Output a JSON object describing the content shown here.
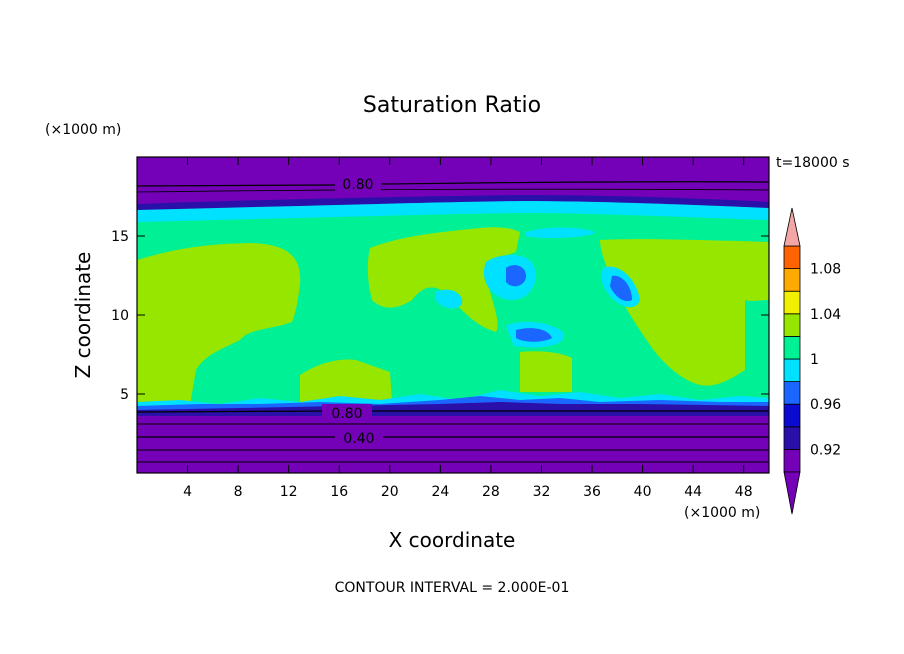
{
  "chart_data": {
    "type": "heatmap",
    "title": "Saturation Ratio",
    "xlabel": "X coordinate",
    "ylabel": "Z coordinate",
    "x_unit": "(×1000 m)",
    "y_unit": "(×1000 m)",
    "time_label": "t=18000 s",
    "footer": "CONTOUR INTERVAL = 2.000E-01",
    "xlim": [
      0,
      50
    ],
    "ylim": [
      0,
      20
    ],
    "x_ticks": [
      4,
      8,
      12,
      16,
      20,
      24,
      28,
      32,
      36,
      40,
      44,
      48
    ],
    "y_ticks": [
      5,
      10,
      15
    ],
    "contour_labels": [
      "0.80",
      "0.80",
      "0.40"
    ],
    "colorbar": {
      "tick_labels": [
        "0.92",
        "0.96",
        "1",
        "1.04",
        "1.08"
      ],
      "levels": [
        0.9,
        0.92,
        0.94,
        0.96,
        0.98,
        1.0,
        1.02,
        1.04,
        1.06,
        1.08,
        1.1
      ],
      "colors": [
        "#7400b8",
        "#2a10a8",
        "#0a0ad0",
        "#1a66ff",
        "#00e0ff",
        "#00f096",
        "#96e600",
        "#f0f000",
        "#ffaa00",
        "#ff6400",
        "#ff1e1e"
      ],
      "under_color": "#7400b8",
      "over_color": "#f4a6a6"
    },
    "grid": false,
    "legend": "right"
  }
}
